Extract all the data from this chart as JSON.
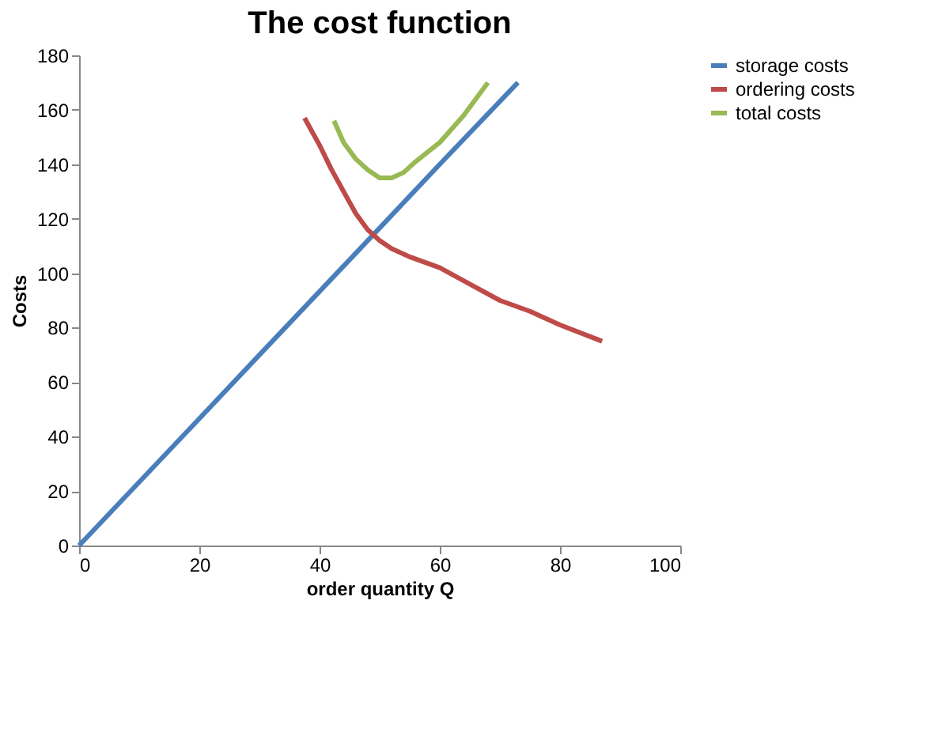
{
  "chart_data": {
    "type": "line",
    "title": "The cost function",
    "xlabel": "order quantity Q",
    "ylabel": "Costs",
    "xlim": [
      0,
      100
    ],
    "xticks": [
      0,
      20,
      40,
      60,
      80,
      100
    ],
    "ylim": [
      0,
      180
    ],
    "yticks": [
      0,
      20,
      40,
      60,
      80,
      100,
      120,
      140,
      160,
      180
    ],
    "grid": false,
    "legend": "right",
    "marker": "none",
    "line_style": "solid",
    "series": [
      {
        "name": "storage costs",
        "color": "#4a7ebb",
        "x": [
          0,
          10,
          20,
          30,
          40,
          50,
          60,
          73
        ],
        "values": [
          0,
          23.3,
          46.6,
          70,
          93.3,
          116.6,
          140,
          170
        ]
      },
      {
        "name": "ordering costs",
        "color": "#be4b48",
        "x": [
          37.5,
          40,
          42,
          44,
          46,
          48,
          50,
          52,
          55,
          60,
          65,
          70,
          75,
          80,
          87
        ],
        "values": [
          157,
          147,
          138,
          130,
          122,
          116,
          112,
          109,
          106,
          102,
          96,
          90,
          86,
          81,
          75
        ]
      },
      {
        "name": "total costs",
        "color": "#98b954",
        "x": [
          42.4,
          44,
          46,
          48,
          50,
          52,
          54,
          56,
          60,
          64,
          68
        ],
        "values": [
          156,
          148,
          142,
          138,
          135,
          135,
          137,
          141,
          148,
          158,
          170
        ]
      }
    ]
  }
}
